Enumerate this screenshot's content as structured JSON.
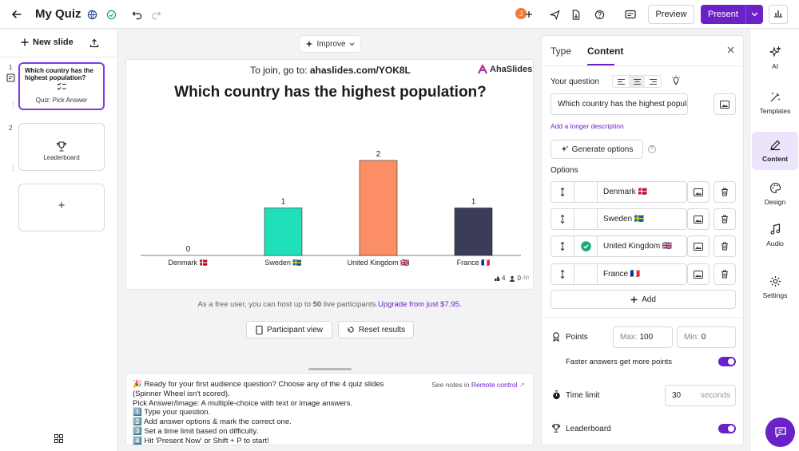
{
  "topbar": {
    "title": "My Quiz",
    "avatar_initial": "J",
    "preview_label": "Preview",
    "present_label": "Present",
    "icons": [
      "back-arrow-icon",
      "globe-icon",
      "check-circle-icon",
      "undo-icon",
      "redo-icon",
      "add-user-icon",
      "send-icon",
      "export-icon",
      "help-icon",
      "captions-icon",
      "bar-chart-icon"
    ]
  },
  "left": {
    "new_slide_label": "New slide",
    "slides": [
      {
        "num": "1",
        "title": "Which country has the highest population?",
        "type": "Quiz: Pick Answer"
      },
      {
        "num": "2",
        "title": "",
        "type": "Leaderboard"
      }
    ],
    "add_symbol": "+"
  },
  "stage": {
    "improve_label": "Improve",
    "join_prefix": "To join, go to:",
    "join_url": "ahaslides.com/YOK8L",
    "brand": "AhaSlides",
    "question": "Which country has the highest population?",
    "stats": {
      "votes": "4",
      "participants": "0",
      "participants_max": "/50"
    }
  },
  "chart_data": {
    "type": "bar",
    "categories": [
      "Denmark 🇩🇰",
      "Sweden 🇸🇪",
      "United Kingdom 🇬🇧",
      "France 🇫🇷"
    ],
    "values": [
      0,
      1,
      2,
      1
    ],
    "colors": [
      "#1fe0b8",
      "#1fe0b8",
      "#fb8e64",
      "#3b3c57"
    ],
    "ylim": [
      0,
      2
    ],
    "title": "",
    "xlabel": "",
    "ylabel": ""
  },
  "footnote": {
    "text": "As a free user, you can host up to",
    "count": "50",
    "text2": "live participants.",
    "link": "Upgrade from just $7.95."
  },
  "actions": {
    "participant_view": "Participant view",
    "reset_results": "Reset results"
  },
  "notes": {
    "see_notes_prefix": "See notes in",
    "see_notes_link": "Remote control",
    "lines": [
      "🎉 Ready for your first audience question? Choose any of the 4 quiz slides",
      "(Spinner Wheel isn't scored).",
      "Pick Answer/Image: A multiple-choice with text or image answers.",
      "1️⃣ Type your question.",
      "2️⃣ Add answer options & mark the correct one.",
      "3️⃣ Set a time limit based on difficulty.",
      "4️⃣ Hit 'Present Now' or Shift + P to start!"
    ]
  },
  "panel": {
    "tabs": [
      "Type",
      "Content"
    ],
    "active_tab": "Content",
    "your_question_label": "Your question",
    "question_value": "Which country has the highest populati",
    "longer_desc_link": "Add a longer description",
    "generate_label": "Generate options",
    "options_label": "Options",
    "options": [
      {
        "label": "Denmark 🇩🇰",
        "correct": false
      },
      {
        "label": "Sweden 🇸🇪",
        "correct": false
      },
      {
        "label": "United Kingdom 🇬🇧",
        "correct": true
      },
      {
        "label": "France 🇫🇷",
        "correct": false
      }
    ],
    "add_label": "Add",
    "points_label": "Points",
    "max_placeholder": "Max:",
    "max_value": "100",
    "min_placeholder": "Min:",
    "min_value": "0",
    "faster_label": "Faster answers get more points",
    "faster_on": true,
    "time_limit_label": "Time limit",
    "time_value": "30",
    "time_unit": "seconds",
    "leaderboard_label": "Leaderboard",
    "leaderboard_on": true
  },
  "sidebar": {
    "items": [
      {
        "label": "AI",
        "icon": "sparkle-icon"
      },
      {
        "label": "Templates",
        "icon": "magic-wand-icon"
      },
      {
        "label": "Content",
        "icon": "pencil-icon"
      },
      {
        "label": "Design",
        "icon": "palette-icon"
      },
      {
        "label": "Audio",
        "icon": "music-note-icon"
      },
      {
        "label": "Settings",
        "icon": "gear-icon"
      }
    ],
    "active": "Content"
  }
}
